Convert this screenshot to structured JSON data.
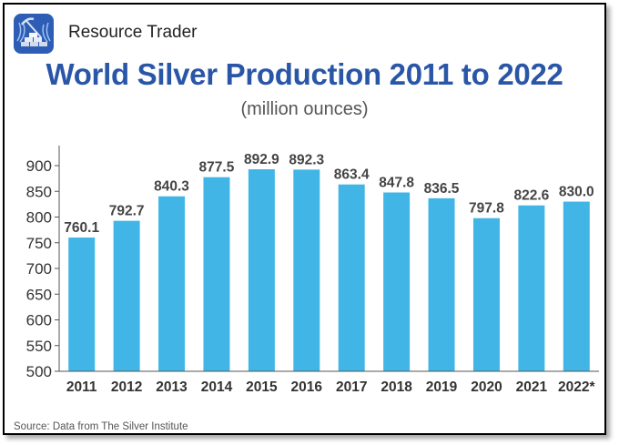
{
  "header": {
    "brand": "Resource Trader",
    "logo_icon": "silver-bars-pickaxe-icon"
  },
  "colors": {
    "bar": "#41b6e6",
    "title": "#2a56a8",
    "logo_bg": "#2d5db4"
  },
  "chart_data": {
    "type": "bar",
    "title": "World Silver Production 2011 to 2022",
    "subtitle": "(million ounces)",
    "categories": [
      "2011",
      "2012",
      "2013",
      "2014",
      "2015",
      "2016",
      "2017",
      "2018",
      "2019",
      "2020",
      "2021",
      "2022*"
    ],
    "values": [
      760.1,
      792.7,
      840.3,
      877.5,
      892.9,
      892.3,
      863.4,
      847.8,
      836.5,
      797.8,
      822.6,
      830.0
    ],
    "data_labels": [
      "760.1",
      "792.7",
      "840.3",
      "877.5",
      "892.9",
      "892.3",
      "863.4",
      "847.8",
      "836.5",
      "797.8",
      "822.6",
      "830.0"
    ],
    "yticks": [
      500,
      550,
      600,
      650,
      700,
      750,
      800,
      850,
      900
    ],
    "ylim": [
      500,
      900
    ],
    "xlabel": "",
    "ylabel": "",
    "grid": false,
    "legend": "none"
  },
  "footer": {
    "source": "Source: Data from The Silver Institute"
  }
}
